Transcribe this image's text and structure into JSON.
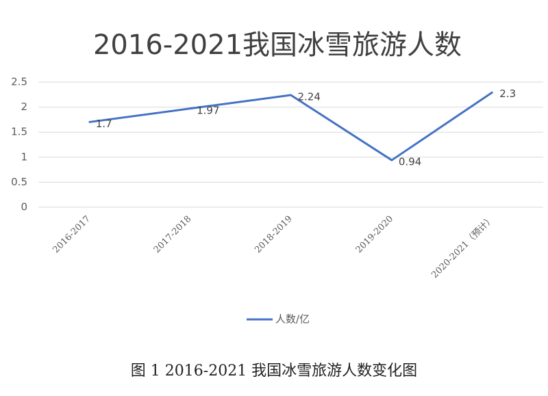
{
  "chart_data": {
    "type": "line",
    "title": "2016-2021我国冰雪旅游人数",
    "categories": [
      "2016-2017",
      "2017-2018",
      "2018-2019",
      "2019-2020",
      "2020-2021（预计）"
    ],
    "series": [
      {
        "name": "人数/亿",
        "color": "#4472c4",
        "values": [
          1.7,
          1.97,
          2.24,
          0.94,
          2.3
        ]
      }
    ],
    "ylim": [
      0,
      2.5
    ],
    "yticks": [
      0,
      0.5,
      1,
      1.5,
      2,
      2.5
    ],
    "grid": true,
    "legend": "bottom",
    "caption": "图 1 2016-2021 我国冰雪旅游人数变化图"
  }
}
